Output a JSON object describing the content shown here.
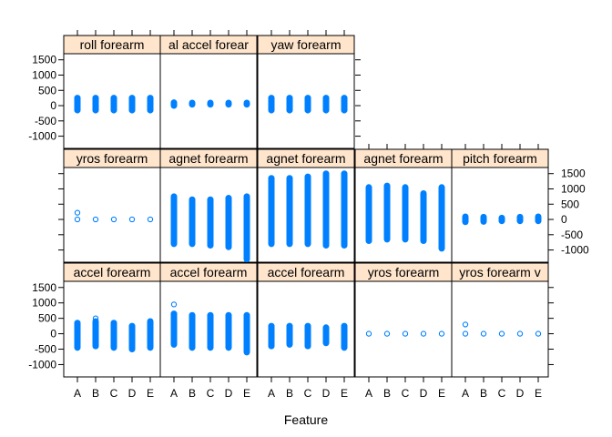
{
  "chart_data": {
    "type": "scatter",
    "subtype": "lattice-stripplot",
    "xlabel": "Feature",
    "ylabel": "",
    "categories": [
      "A",
      "B",
      "C",
      "D",
      "E"
    ],
    "yticks": [
      -1000,
      -500,
      0,
      500,
      1000,
      1500
    ],
    "ytick_labels": [
      "-1000",
      "-500",
      "0",
      "500",
      "1000",
      "1500"
    ],
    "ylim": [
      -1400,
      1700
    ],
    "colors": {
      "point": "#0080ff",
      "strip_bg": "#ffe5cc",
      "frame": "#000000"
    },
    "panels": [
      {
        "row": 1,
        "col": 1,
        "title": "roll_forearm",
        "strip_text": "roll  forearm",
        "ranges": [
          [
            -150,
            250
          ],
          [
            -150,
            250
          ],
          [
            -150,
            250
          ],
          [
            -150,
            250
          ],
          [
            -150,
            250
          ]
        ],
        "outliers": [
          [],
          [],
          [
            -150
          ],
          [],
          []
        ]
      },
      {
        "row": 1,
        "col": 2,
        "title": "total_accel_forearm",
        "strip_text": "al  accel  forear",
        "ranges": [
          [
            0,
            100
          ],
          [
            40,
            90
          ],
          [
            40,
            90
          ],
          [
            40,
            90
          ],
          [
            40,
            90
          ]
        ],
        "outliers": [
          [
            100
          ],
          [],
          [],
          [],
          []
        ]
      },
      {
        "row": 1,
        "col": 3,
        "title": "yaw_forearm",
        "strip_text": "yaw  forearm",
        "ranges": [
          [
            -150,
            250
          ],
          [
            -150,
            250
          ],
          [
            -150,
            250
          ],
          [
            -150,
            250
          ],
          [
            -150,
            250
          ]
        ],
        "outliers": [
          [],
          [],
          [],
          [],
          []
        ]
      },
      {
        "row": 2,
        "col": 1,
        "title": "gyros_forearm",
        "strip_text": "yros  forearm",
        "ranges": [
          [
            -10,
            10
          ],
          [
            -10,
            10
          ],
          [
            -10,
            10
          ],
          [
            -10,
            10
          ],
          [
            -10,
            10
          ]
        ],
        "outliers": [
          [
            220
          ],
          [],
          [],
          [],
          []
        ]
      },
      {
        "row": 2,
        "col": 2,
        "title": "magnet_forearm",
        "strip_text": "agnet  forearm",
        "ranges": [
          [
            -800,
            750
          ],
          [
            -800,
            650
          ],
          [
            -850,
            650
          ],
          [
            -900,
            700
          ],
          [
            -1300,
            750
          ]
        ],
        "outliers": [
          [],
          [],
          [],
          [],
          []
        ]
      },
      {
        "row": 2,
        "col": 3,
        "title": "magnet_forearm",
        "strip_text": "agnet  forearm",
        "ranges": [
          [
            -800,
            1350
          ],
          [
            -800,
            1350
          ],
          [
            -800,
            1400
          ],
          [
            -850,
            1500
          ],
          [
            -850,
            1500
          ]
        ],
        "outliers": [
          [],
          [],
          [],
          [],
          []
        ]
      },
      {
        "row": 2,
        "col": 4,
        "title": "magnet_forearm",
        "strip_text": "agnet  forearm",
        "ranges": [
          [
            -700,
            1050
          ],
          [
            -650,
            1100
          ],
          [
            -650,
            1050
          ],
          [
            -700,
            850
          ],
          [
            -950,
            1050
          ]
        ],
        "outliers": [
          [],
          [],
          [],
          [],
          []
        ]
      },
      {
        "row": 2,
        "col": 5,
        "title": "pitch_forearm",
        "strip_text": "pitch  forearm",
        "ranges": [
          [
            -80,
            90
          ],
          [
            -70,
            80
          ],
          [
            -50,
            50
          ],
          [
            -50,
            80
          ],
          [
            -50,
            90
          ]
        ],
        "outliers": [
          [],
          [],
          [],
          [],
          []
        ]
      },
      {
        "row": 3,
        "col": 1,
        "title": "accel_forearm",
        "strip_text": "accel  forearm",
        "ranges": [
          [
            -450,
            350
          ],
          [
            -400,
            400
          ],
          [
            -450,
            350
          ],
          [
            -500,
            250
          ],
          [
            -450,
            400
          ]
        ],
        "outliers": [
          [],
          [
            500
          ],
          [],
          [],
          []
        ]
      },
      {
        "row": 3,
        "col": 2,
        "title": "accel_forearm",
        "strip_text": "accel  forearm",
        "ranges": [
          [
            -350,
            650
          ],
          [
            -450,
            600
          ],
          [
            -450,
            600
          ],
          [
            -450,
            600
          ],
          [
            -600,
            600
          ]
        ],
        "outliers": [
          [
            950
          ],
          [],
          [],
          [],
          []
        ]
      },
      {
        "row": 3,
        "col": 3,
        "title": "accel_forearm",
        "strip_text": "accel  forearm",
        "ranges": [
          [
            -400,
            250
          ],
          [
            -350,
            250
          ],
          [
            -400,
            250
          ],
          [
            -300,
            200
          ],
          [
            -450,
            250
          ]
        ],
        "outliers": [
          [],
          [],
          [],
          [],
          []
        ]
      },
      {
        "row": 3,
        "col": 4,
        "title": "gyros_forearm",
        "strip_text": "yros  forearm",
        "ranges": [
          [
            -5,
            5
          ],
          [
            -5,
            5
          ],
          [
            -5,
            5
          ],
          [
            -5,
            5
          ],
          [
            -5,
            5
          ]
        ],
        "outliers": [
          [],
          [],
          [],
          [],
          []
        ]
      },
      {
        "row": 3,
        "col": 5,
        "title": "gyros_forearm",
        "strip_text": "yros  forearm  v",
        "ranges": [
          [
            -10,
            10
          ],
          [
            -10,
            10
          ],
          [
            -10,
            10
          ],
          [
            -10,
            10
          ],
          [
            -10,
            10
          ]
        ],
        "outliers": [
          [
            300
          ],
          [],
          [],
          [],
          []
        ]
      }
    ]
  }
}
